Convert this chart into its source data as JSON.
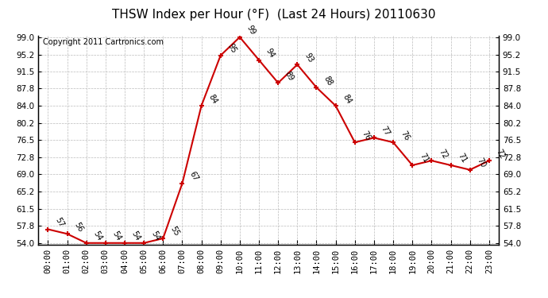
{
  "title": "THSW Index per Hour (°F)  (Last 24 Hours) 20110630",
  "copyright": "Copyright 2011 Cartronics.com",
  "hours": [
    "00:00",
    "01:00",
    "02:00",
    "03:00",
    "04:00",
    "05:00",
    "06:00",
    "07:00",
    "08:00",
    "09:00",
    "10:00",
    "11:00",
    "12:00",
    "13:00",
    "14:00",
    "15:00",
    "16:00",
    "17:00",
    "18:00",
    "19:00",
    "20:00",
    "21:00",
    "22:00",
    "23:00"
  ],
  "values": [
    57,
    56,
    54,
    54,
    54,
    54,
    55,
    67,
    84,
    95,
    99,
    94,
    89,
    93,
    88,
    84,
    76,
    77,
    76,
    71,
    72,
    71,
    70,
    72
  ],
  "ylim_min": 54.0,
  "ylim_max": 99.0,
  "yticks": [
    54.0,
    57.8,
    61.5,
    65.2,
    69.0,
    72.8,
    76.5,
    80.2,
    84.0,
    87.8,
    91.5,
    95.2,
    99.0
  ],
  "line_color": "#cc0000",
  "marker_color": "#cc0000",
  "bg_color": "#ffffff",
  "grid_color": "#bbbbbb",
  "title_fontsize": 11,
  "copyright_fontsize": 7,
  "annotation_fontsize": 7,
  "tick_fontsize": 7.5
}
